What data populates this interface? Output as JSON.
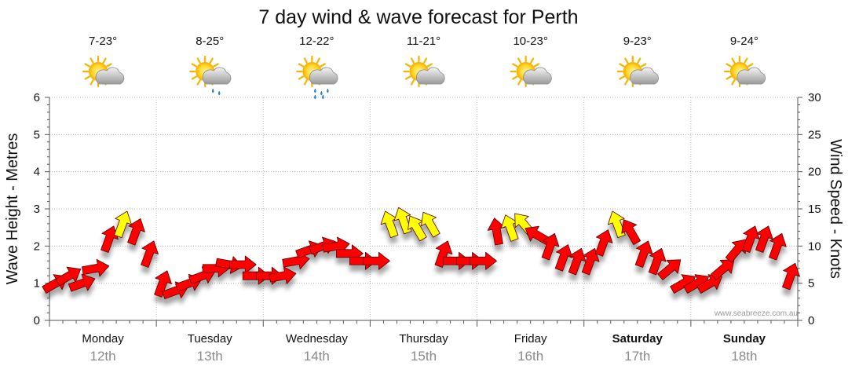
{
  "chart_data": {
    "type": "line",
    "title": "7 day wind & wave forecast for Perth",
    "ylabel_left": "Wave Height - Metres",
    "ylabel_right": "Wind Speed - Knots",
    "ylim_left": [
      0,
      6
    ],
    "ylim_right": [
      0,
      30
    ],
    "yticks_left": [
      "0",
      "1",
      "2",
      "3",
      "4",
      "5",
      "6"
    ],
    "yticks_right": [
      "0",
      "5",
      "10",
      "15",
      "20",
      "25",
      "30"
    ],
    "grid": true,
    "days": [
      {
        "day": "Monday",
        "date": "12th",
        "temps": "7-23°",
        "weather": "partly-cloudy",
        "bold": false
      },
      {
        "day": "Tuesday",
        "date": "13th",
        "temps": "8-25°",
        "weather": "showers",
        "bold": false
      },
      {
        "day": "Wednesday",
        "date": "14th",
        "temps": "12-22°",
        "weather": "rain",
        "bold": false
      },
      {
        "day": "Thursday",
        "date": "15th",
        "temps": "11-21°",
        "weather": "partly-cloudy",
        "bold": false
      },
      {
        "day": "Friday",
        "date": "16th",
        "temps": "10-23°",
        "weather": "partly-cloudy",
        "bold": false
      },
      {
        "day": "Saturday",
        "date": "17th",
        "temps": "9-23°",
        "weather": "partly-cloudy",
        "bold": true
      },
      {
        "day": "Sunday",
        "date": "18th",
        "temps": "9-24°",
        "weather": "partly-cloudy",
        "bold": true
      }
    ],
    "series": [
      {
        "name": "Wind",
        "unit": "knots",
        "x": [
          0.0,
          0.125,
          0.25,
          0.375,
          0.5,
          0.625,
          0.75,
          0.875,
          1.0,
          1.125,
          1.25,
          1.375,
          1.5,
          1.625,
          1.75,
          1.875,
          2.0,
          2.125,
          2.25,
          2.375,
          2.5,
          2.625,
          2.75,
          2.875,
          3.0,
          3.125,
          3.25,
          3.375,
          3.5,
          3.625,
          3.75,
          3.875,
          4.0,
          4.125,
          4.25,
          4.375,
          4.5,
          4.625,
          4.75,
          4.875,
          5.0,
          5.125,
          5.25,
          5.375,
          5.5,
          5.625,
          5.75,
          5.875,
          6.0,
          6.125,
          6.25,
          6.375,
          6.5,
          6.625,
          6.75,
          6.875
        ],
        "values": [
          5,
          6,
          5,
          7,
          11,
          13,
          12,
          9,
          5,
          4,
          5,
          6,
          7,
          7.5,
          7.5,
          6,
          6,
          6,
          8,
          9.5,
          10,
          10,
          9,
          8,
          8,
          13,
          13.5,
          12.5,
          13,
          9,
          8,
          8,
          8,
          12,
          12.5,
          13,
          11.5,
          10,
          8.5,
          8,
          8,
          10.5,
          13,
          12,
          9,
          8,
          7,
          5,
          5,
          5,
          7,
          9.5,
          11,
          11,
          10,
          6
        ],
        "direction_deg": [
          240,
          240,
          250,
          260,
          200,
          200,
          200,
          200,
          200,
          250,
          250,
          250,
          270,
          280,
          270,
          270,
          270,
          260,
          260,
          250,
          250,
          260,
          270,
          270,
          270,
          160,
          160,
          150,
          150,
          200,
          270,
          270,
          270,
          170,
          160,
          140,
          120,
          200,
          200,
          200,
          200,
          200,
          160,
          150,
          200,
          200,
          230,
          240,
          240,
          240,
          230,
          220,
          200,
          200,
          200,
          200
        ],
        "colors": {
          "low": "#ff0000",
          "high": "#ffff00"
        }
      }
    ],
    "watermark": "www.seabreeze.com.au"
  }
}
